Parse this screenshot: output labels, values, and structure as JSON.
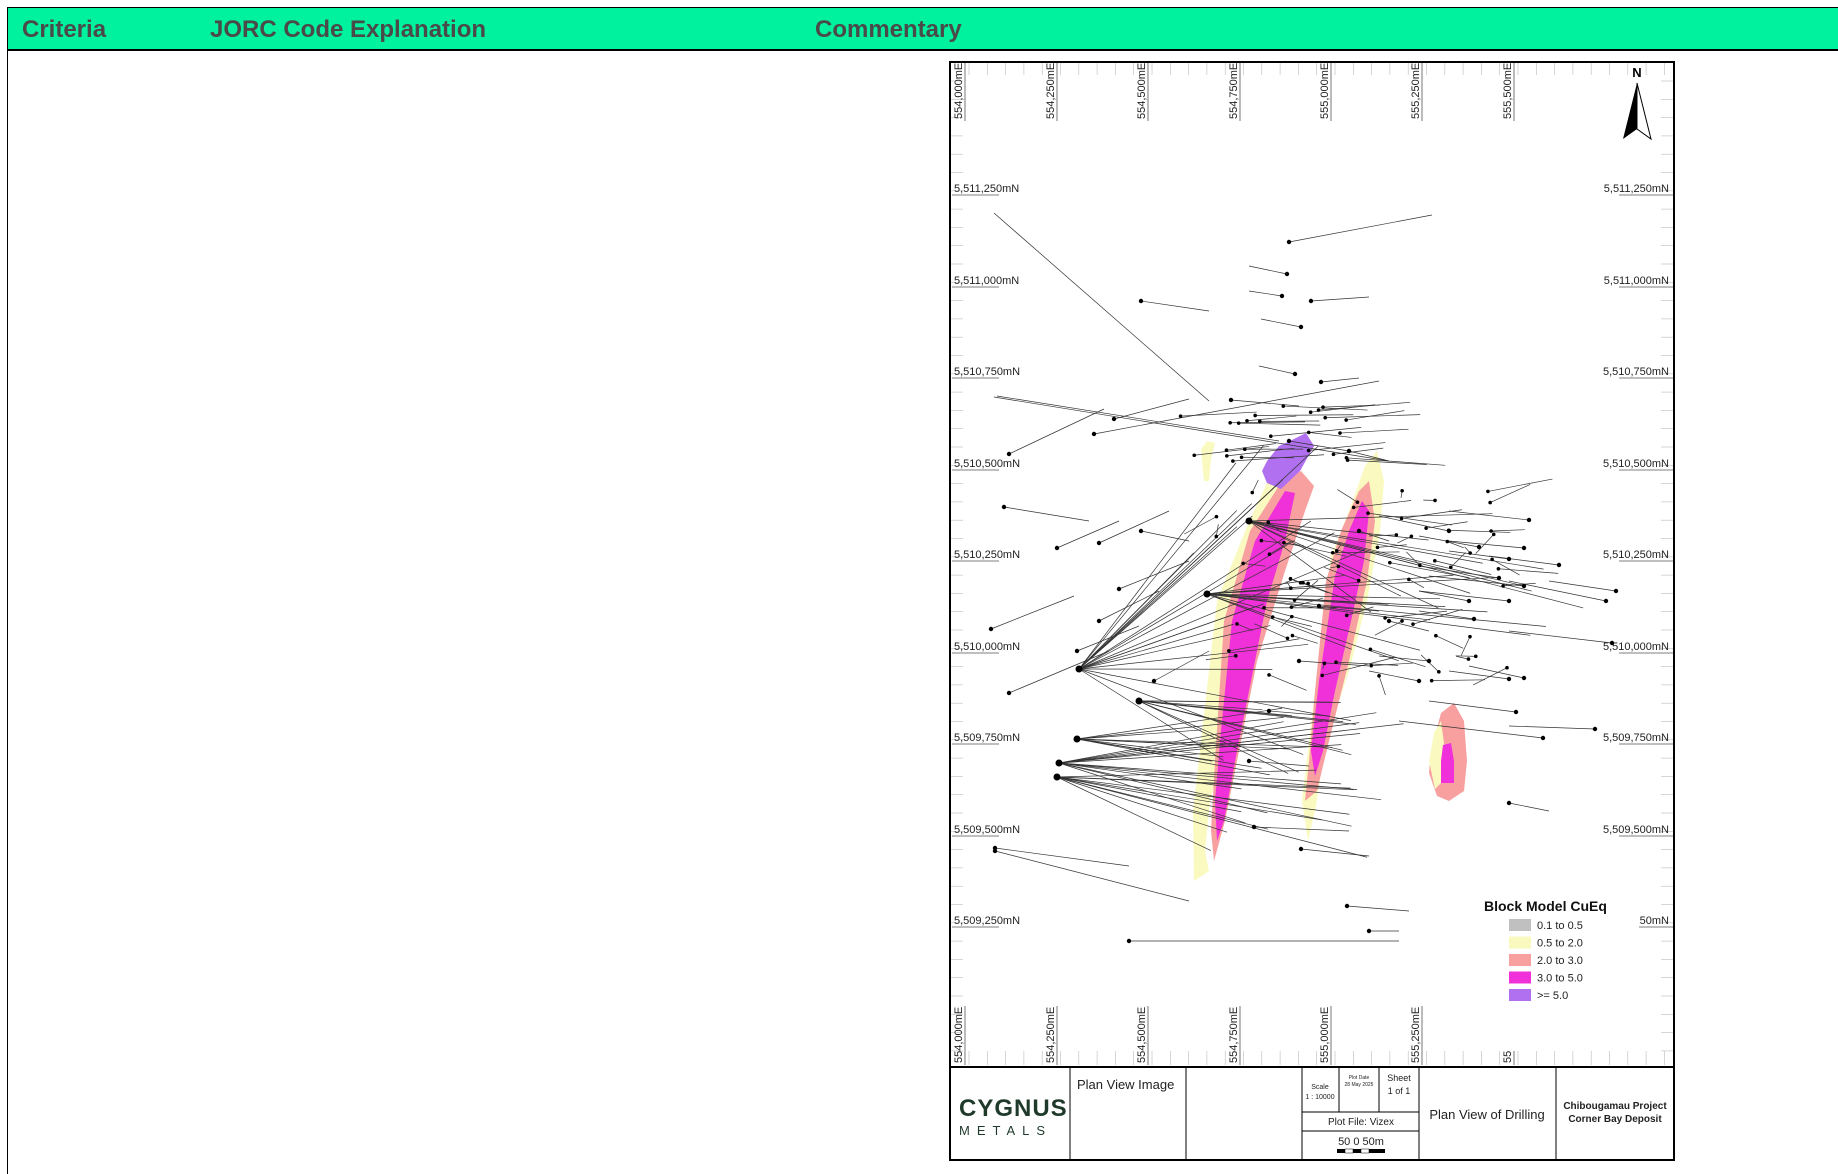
{
  "table": {
    "header": {
      "criteria": "Criteria",
      "jorc": "JORC Code Explanation",
      "commentary": "Commentary"
    }
  },
  "figure": {
    "easting_labels": [
      "554,000mE",
      "554,250mE",
      "554,500mE",
      "554,750mE",
      "555,000mE",
      "555,250mE",
      "555,500mE"
    ],
    "northing_labels": [
      "5,511,250mN",
      "5,511,000mN",
      "5,510,750mN",
      "5,510,500mN",
      "5,510,250mN",
      "5,510,000mN",
      "5,509,750mN",
      "5,509,500mN",
      "5,509,250mN"
    ],
    "north_arrow": "N",
    "legend": {
      "title": "Block Model CuEq",
      "items": [
        {
          "label": "0.1 to 0.5",
          "color": "#c0c0c0"
        },
        {
          "label": "0.5 to 2.0",
          "color": "#fafac0"
        },
        {
          "label": "2.0 to 3.0",
          "color": "#f8a0a0"
        },
        {
          "label": "3.0 to 5.0",
          "color": "#f030d8"
        },
        {
          "label": ">= 5.0",
          "color": "#b070f0"
        }
      ]
    },
    "title_block": {
      "logo_top": "CYGNUS",
      "logo_bottom": "METALS",
      "image_label": "Plan View Image",
      "scale_label": "Scale",
      "scale_value": "1 : 10000",
      "plot_date_label": "Plot Date",
      "plot_date_value": "28 May 2025",
      "sheet_label": "Sheet",
      "sheet_value": "1 of 1",
      "plot_file": "Plot File: Vizex",
      "scale_bar": "50   0  50m",
      "view_title": "Plan View of Drilling",
      "project": "Chibougamau Project",
      "deposit": "Corner Bay Deposit"
    }
  }
}
